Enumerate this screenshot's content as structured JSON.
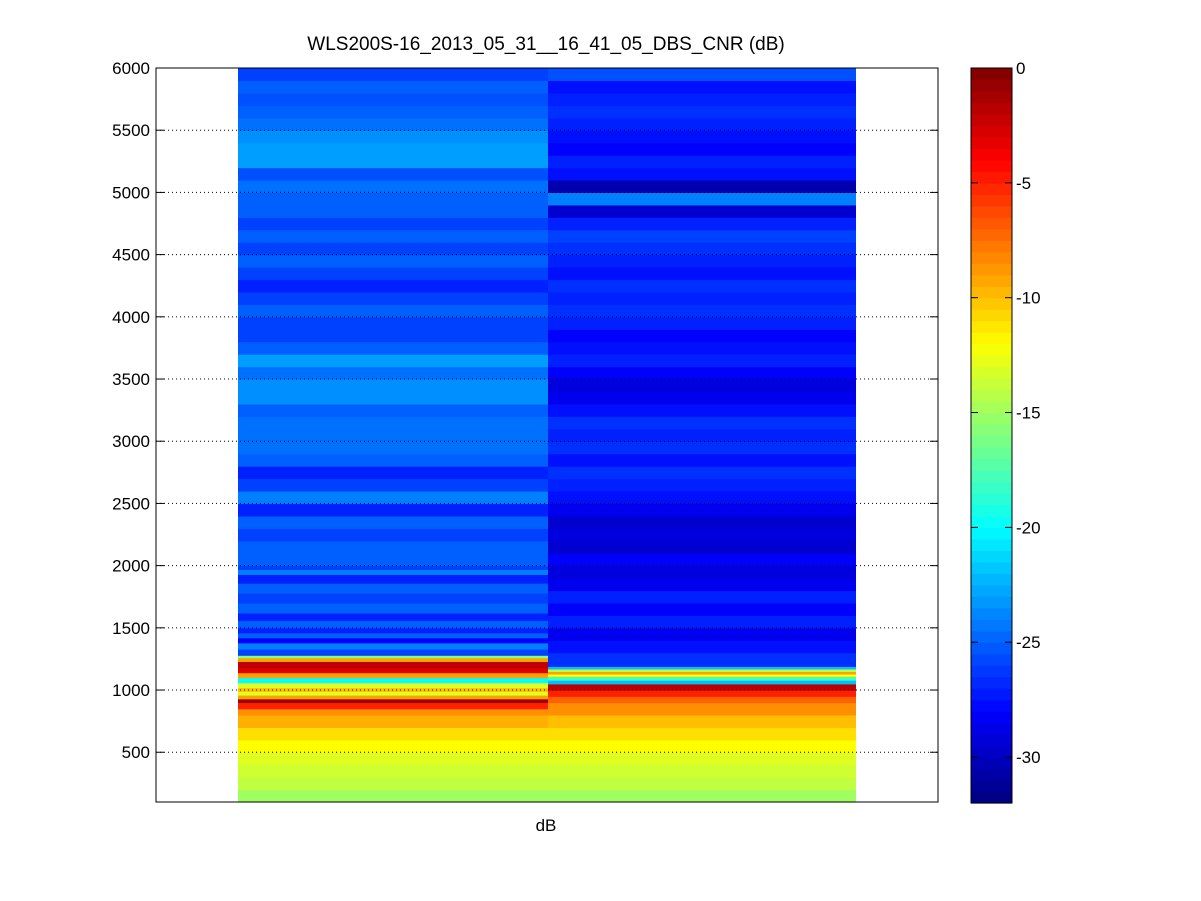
{
  "chart_data": {
    "type": "heatmap",
    "title": "WLS200S-16_2013_05_31__16_41_05_DBS_CNR (dB)",
    "xlabel": "dB",
    "ylabel": "",
    "ylim": [
      100,
      6000
    ],
    "yticks": [
      500,
      1000,
      1500,
      2000,
      2500,
      3000,
      3500,
      4000,
      4500,
      5000,
      5500,
      6000
    ],
    "grid": "y-dotted",
    "colormap": "jet",
    "clim": [
      -32,
      0
    ],
    "colorbar_ticks": [
      0,
      -5,
      -10,
      -15,
      -20,
      -25,
      -30
    ],
    "columns": [
      {
        "bands": [
          [
            100,
            200,
            -15
          ],
          [
            200,
            300,
            -14
          ],
          [
            300,
            400,
            -13.5
          ],
          [
            400,
            500,
            -13
          ],
          [
            500,
            600,
            -12
          ],
          [
            600,
            700,
            -11
          ],
          [
            700,
            800,
            -9.5
          ],
          [
            800,
            850,
            -8.5
          ],
          [
            850,
            900,
            -5
          ],
          [
            900,
            930,
            -1
          ],
          [
            930,
            960,
            -9
          ],
          [
            960,
            990,
            -13
          ],
          [
            990,
            1020,
            -10
          ],
          [
            1020,
            1060,
            -13
          ],
          [
            1060,
            1100,
            -20
          ],
          [
            1100,
            1140,
            -9
          ],
          [
            1140,
            1180,
            -3
          ],
          [
            1180,
            1230,
            -2
          ],
          [
            1230,
            1260,
            -9
          ],
          [
            1260,
            1280,
            -16
          ],
          [
            1280,
            1330,
            -26
          ],
          [
            1330,
            1380,
            -24
          ],
          [
            1380,
            1420,
            -28
          ],
          [
            1420,
            1460,
            -25
          ],
          [
            1460,
            1500,
            -27
          ],
          [
            1500,
            1560,
            -25
          ],
          [
            1560,
            1620,
            -27
          ],
          [
            1620,
            1700,
            -25
          ],
          [
            1700,
            1780,
            -26
          ],
          [
            1780,
            1860,
            -25
          ],
          [
            1860,
            1930,
            -27
          ],
          [
            1930,
            1970,
            -24
          ],
          [
            1970,
            2000,
            -26
          ],
          [
            2000,
            2200,
            -25
          ],
          [
            2200,
            2300,
            -26
          ],
          [
            2300,
            2400,
            -25
          ],
          [
            2400,
            2500,
            -27
          ],
          [
            2500,
            2600,
            -24
          ],
          [
            2600,
            2700,
            -26
          ],
          [
            2700,
            2800,
            -27
          ],
          [
            2800,
            2900,
            -25
          ],
          [
            2900,
            3200,
            -24.5
          ],
          [
            3200,
            3300,
            -25
          ],
          [
            3300,
            3500,
            -23.5
          ],
          [
            3500,
            3600,
            -24.5
          ],
          [
            3600,
            3700,
            -23
          ],
          [
            3700,
            3800,
            -25
          ],
          [
            3800,
            4000,
            -26
          ],
          [
            4000,
            4100,
            -25
          ],
          [
            4100,
            4200,
            -26
          ],
          [
            4200,
            4300,
            -27
          ],
          [
            4300,
            4400,
            -26
          ],
          [
            4400,
            4500,
            -25
          ],
          [
            4500,
            4600,
            -26
          ],
          [
            4600,
            4700,
            -25
          ],
          [
            4700,
            4800,
            -26
          ],
          [
            4800,
            5000,
            -25
          ],
          [
            5000,
            5100,
            -24.5
          ],
          [
            5100,
            5200,
            -25.5
          ],
          [
            5200,
            5400,
            -23
          ],
          [
            5400,
            5500,
            -23.5
          ],
          [
            5500,
            5600,
            -24.5
          ],
          [
            5600,
            5700,
            -25
          ],
          [
            5700,
            5800,
            -25.5
          ],
          [
            5800,
            5900,
            -25
          ],
          [
            5900,
            6000,
            -26
          ]
        ]
      },
      {
        "bands": [
          [
            100,
            200,
            -15
          ],
          [
            200,
            300,
            -14
          ],
          [
            300,
            400,
            -13.5
          ],
          [
            400,
            500,
            -13
          ],
          [
            500,
            600,
            -12
          ],
          [
            600,
            700,
            -11
          ],
          [
            700,
            800,
            -10
          ],
          [
            800,
            900,
            -8.5
          ],
          [
            900,
            950,
            -7
          ],
          [
            950,
            1000,
            -5
          ],
          [
            1000,
            1050,
            -2
          ],
          [
            1050,
            1080,
            -22
          ],
          [
            1080,
            1110,
            -18
          ],
          [
            1110,
            1130,
            -12
          ],
          [
            1130,
            1150,
            -9
          ],
          [
            1150,
            1170,
            -14
          ],
          [
            1170,
            1190,
            -22
          ],
          [
            1190,
            1300,
            -26.5
          ],
          [
            1300,
            1400,
            -27.5
          ],
          [
            1400,
            1500,
            -28.5
          ],
          [
            1500,
            1600,
            -27
          ],
          [
            1600,
            1700,
            -28
          ],
          [
            1700,
            1800,
            -27
          ],
          [
            1800,
            1900,
            -28.5
          ],
          [
            1900,
            2000,
            -29
          ],
          [
            2000,
            2100,
            -28
          ],
          [
            2100,
            2200,
            -29.5
          ],
          [
            2200,
            2300,
            -29
          ],
          [
            2300,
            2400,
            -29.5
          ],
          [
            2400,
            2500,
            -28.5
          ],
          [
            2500,
            2600,
            -27.5
          ],
          [
            2600,
            2700,
            -27
          ],
          [
            2700,
            2800,
            -26.5
          ],
          [
            2800,
            2900,
            -27.5
          ],
          [
            2900,
            3000,
            -26.5
          ],
          [
            3000,
            3100,
            -27
          ],
          [
            3100,
            3200,
            -26.5
          ],
          [
            3200,
            3300,
            -27.5
          ],
          [
            3300,
            3400,
            -28.5
          ],
          [
            3400,
            3500,
            -29
          ],
          [
            3500,
            3600,
            -28
          ],
          [
            3600,
            3700,
            -27
          ],
          [
            3700,
            3800,
            -27.5
          ],
          [
            3800,
            3900,
            -28
          ],
          [
            3900,
            4000,
            -27
          ],
          [
            4000,
            4100,
            -26.5
          ],
          [
            4100,
            4200,
            -27
          ],
          [
            4200,
            4300,
            -26.5
          ],
          [
            4300,
            4400,
            -27.5
          ],
          [
            4400,
            4500,
            -27
          ],
          [
            4500,
            4600,
            -26.5
          ],
          [
            4600,
            4700,
            -26
          ],
          [
            4700,
            4800,
            -27
          ],
          [
            4800,
            4900,
            -29.5
          ],
          [
            4900,
            5000,
            -24
          ],
          [
            5000,
            5100,
            -30.5
          ],
          [
            5100,
            5200,
            -27.5
          ],
          [
            5200,
            5300,
            -27
          ],
          [
            5300,
            5400,
            -28
          ],
          [
            5400,
            5500,
            -27.5
          ],
          [
            5500,
            5600,
            -27
          ],
          [
            5600,
            5700,
            -26.5
          ],
          [
            5700,
            5800,
            -27
          ],
          [
            5800,
            5900,
            -27.5
          ],
          [
            5900,
            6000,
            -25.5
          ]
        ]
      }
    ]
  }
}
